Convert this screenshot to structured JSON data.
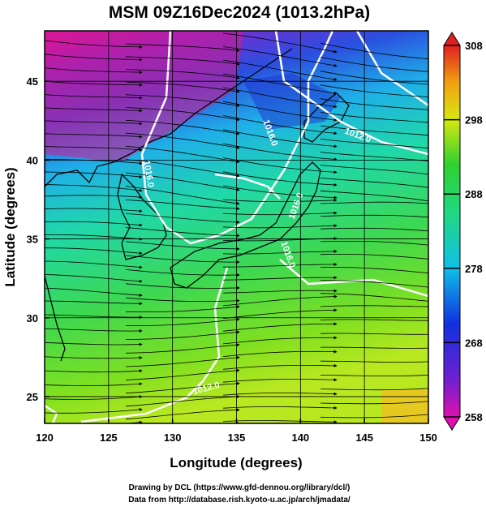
{
  "title": "MSM 09Z16Dec2024 (1013.2hPa)",
  "map": {
    "xlabel": "Longitude (degrees)",
    "ylabel": "Latitude  (degrees)",
    "xlim": [
      120,
      150
    ],
    "ylim": [
      23.3,
      48.2
    ],
    "xticks": [
      120,
      125,
      130,
      135,
      140,
      145,
      150
    ],
    "yticks": [
      25,
      30,
      35,
      40,
      45
    ],
    "contour_labels": [
      "1016.0",
      "1012.0",
      "1016.0",
      "1016.0",
      "1016.0",
      "1012.0"
    ]
  },
  "colorbar": {
    "lim": [
      258,
      308
    ],
    "ticks": [
      258,
      268,
      278,
      288,
      298,
      308
    ]
  },
  "footer": [
    "Drawing by DCL (https://www.gfd-dennou.org/library/dcl/)",
    "Data from http://database.rish.kyoto-u.ac.jp/arch/jmadata/"
  ]
}
